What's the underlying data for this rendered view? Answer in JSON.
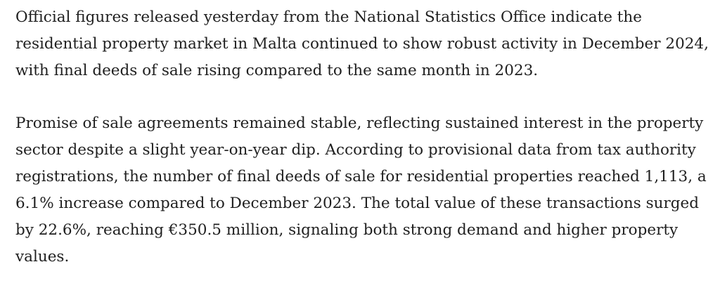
{
  "article": {
    "paragraphs": [
      "Official figures released yesterday from the National Statistics Office indicate the residential property market in Malta continued to show robust activity in December 2024, with final deeds of sale rising compared to the same month in 2023.",
      "Promise of sale agreements remained stable, reflecting sustained interest in the property sector despite a slight year-on-year dip. According to provisional data from tax authority registrations, the number of final deeds of sale for residential properties reached 1,113, a 6.1% increase compared to December 2023. The total value of these transactions surged by 22.6%, reaching €350.5 million, signaling both strong demand and higher property values."
    ]
  }
}
